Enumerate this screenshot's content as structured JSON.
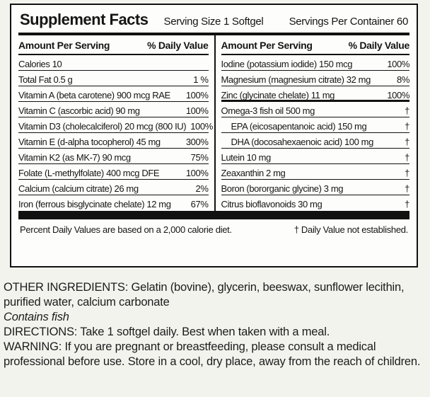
{
  "panel": {
    "title": "Supplement Facts",
    "serving_size": "Serving Size 1 Softgel",
    "servings_per_container": "Servings Per Container 60",
    "column_header": {
      "amount": "Amount Per Serving",
      "daily_value": "% Daily Value"
    },
    "left_rows": [
      {
        "name": "Calories 10",
        "value": "",
        "cls": ""
      },
      {
        "name": "Total Fat  0.5 g",
        "value": "1 %",
        "cls": "val-low"
      },
      {
        "name": "Vitamin A (beta carotene) 900 mcg RAE",
        "value": "100%",
        "cls": ""
      },
      {
        "name": "Vitamin C (ascorbic acid) 90 mg",
        "value": "100%",
        "cls": ""
      },
      {
        "name": "Vitamin D3 (cholecalciferol) 20 mcg (800 IU)",
        "value": "100%",
        "cls": ""
      },
      {
        "name": "Vitamin E (d-alpha tocopherol) 45 mg",
        "value": "300%",
        "cls": ""
      },
      {
        "name": "Vitamin K2 (as MK-7) 90 mcg",
        "value": "75%",
        "cls": ""
      },
      {
        "name": "Folate (L-methylfolate) 400 mcg DFE",
        "value": "100%",
        "cls": ""
      },
      {
        "name": "Calcium (calcium citrate) 26 mg",
        "value": "2%",
        "cls": ""
      },
      {
        "name": "Iron (ferrous bisglycinate chelate) 12 mg",
        "value": "67%",
        "cls": "no-sep"
      }
    ],
    "right_rows": [
      {
        "name": "Iodine (potassium iodide) 150 mcg",
        "value": "100%",
        "cls": ""
      },
      {
        "name": "Magnesium (magnesium citrate) 32 mg",
        "value": "8%",
        "cls": ""
      },
      {
        "name": "Zinc (glycinate chelate) 11 mg",
        "value": "100%",
        "cls": "sep-thick"
      },
      {
        "name": "Omega-3 fish oil 500 mg",
        "value": "†",
        "cls": ""
      },
      {
        "name": "EPA (eicosapentanoic acid) 150 mg",
        "value": "†",
        "cls": "indent"
      },
      {
        "name": "DHA (docosahexaenoic acid) 100 mg",
        "value": "†",
        "cls": "indent"
      },
      {
        "name": "Lutein 10 mg",
        "value": "†",
        "cls": ""
      },
      {
        "name": "Zeaxanthin 2 mg",
        "value": "†",
        "cls": ""
      },
      {
        "name": "Boron (bororganic glycine) 3 mg",
        "value": "†",
        "cls": ""
      },
      {
        "name": "Citrus bioflavonoids 30 mg",
        "value": "†",
        "cls": "no-sep"
      }
    ],
    "footnote_left": "Percent Daily Values are based on a 2,000 calorie diet.",
    "footnote_right": "† Daily Value not established."
  },
  "below": {
    "other_ingredients": "OTHER INGREDIENTS: Gelatin (bovine), glycerin, beeswax, sunflower lecithin, purified water, calcium carbonate",
    "contains": "Contains fish",
    "directions": "DIRECTIONS: Take 1 softgel daily. Best when taken with a meal.",
    "warning": "WARNING: If you are pregnant or breastfeeding, please consult a medical professional before use. Store in a cool, dry place, away from the reach of children."
  },
  "colors": {
    "page_background": "#f3f3ee",
    "panel_background": "#fdfdfb",
    "ink": "#111111"
  }
}
